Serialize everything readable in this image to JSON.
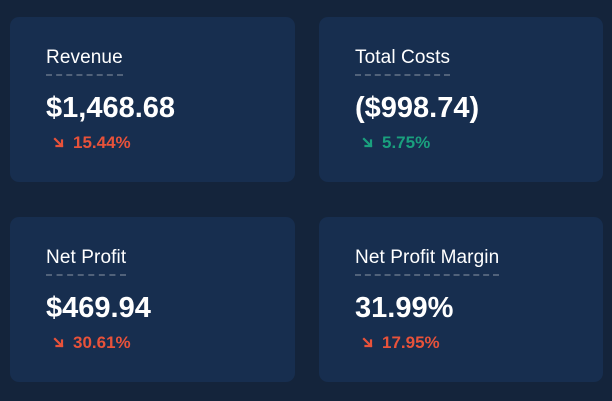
{
  "colors": {
    "background": "#14243b",
    "card": "#172e4f",
    "text": "#ffffff",
    "negative": "#e8523a",
    "positive": "#1aa07e",
    "title_underline": "#51627a"
  },
  "cards": [
    {
      "title": "Revenue",
      "value": "$1,468.68",
      "change": "15.44%",
      "direction_icon": "arrow-down-right-icon",
      "status": "negative"
    },
    {
      "title": "Total Costs",
      "value": "($998.74)",
      "change": "5.75%",
      "direction_icon": "arrow-down-right-icon",
      "status": "positive"
    },
    {
      "title": "Net Profit",
      "value": "$469.94",
      "change": "30.61%",
      "direction_icon": "arrow-down-right-icon",
      "status": "negative"
    },
    {
      "title": "Net Profit Margin",
      "value": "31.99%",
      "change": "17.95%",
      "direction_icon": "arrow-down-right-icon",
      "status": "negative"
    }
  ]
}
